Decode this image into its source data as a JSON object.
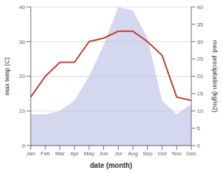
{
  "chart_data": {
    "type": "line",
    "categories": [
      "Jan",
      "Feb",
      "Mar",
      "Apr",
      "May",
      "Jun",
      "Jul",
      "Aug",
      "Sep",
      "Oct",
      "Nov",
      "Dec"
    ],
    "xlabel": "date (month)",
    "ylabel": "max temp (C)",
    "y2label": "med. precipitation (kg/m2)",
    "ylim": [
      0,
      40
    ],
    "yticks": [
      0,
      10,
      20,
      30,
      40
    ],
    "y2lim": [
      0,
      40
    ],
    "y2ticks": [
      0,
      5,
      10,
      15,
      20,
      25,
      30,
      35,
      40
    ],
    "grid": true,
    "series": [
      {
        "type": "area",
        "axis": "y2",
        "color": "#b0b8e0",
        "values": [
          9,
          9,
          10,
          13,
          20,
          29,
          40,
          39,
          31,
          13,
          9,
          12
        ]
      },
      {
        "type": "line",
        "color": "#c0392b",
        "values": [
          14,
          20,
          24,
          24,
          30,
          31,
          33,
          33,
          30,
          26,
          14,
          13
        ]
      }
    ]
  }
}
